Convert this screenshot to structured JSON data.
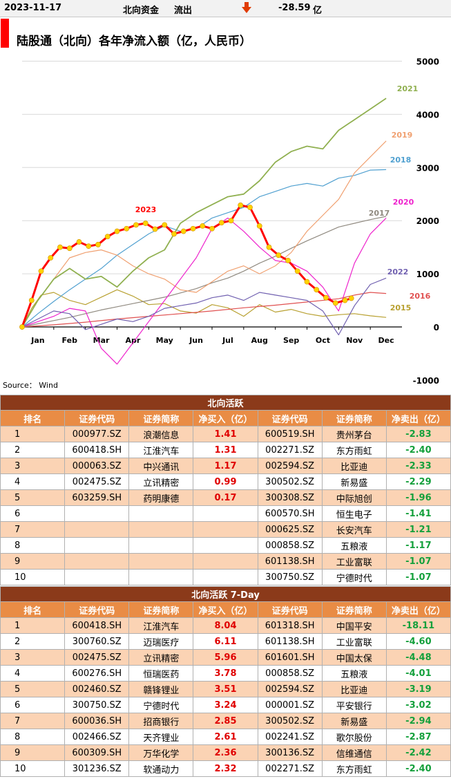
{
  "header": {
    "date": "2023-11-17",
    "label": "北向资金",
    "direction": "流出",
    "arrow_icon": "down-arrow",
    "arrow_color": "#e03b00",
    "value": "-28.59",
    "unit": "亿"
  },
  "chart_data": {
    "type": "line",
    "title": "陆股通（北向）各年净流入额（亿，人民币）",
    "source": "Source： Wind",
    "title_marker_color": "#ff0000",
    "months": [
      "Jan",
      "Feb",
      "Mar",
      "Apr",
      "May",
      "Jun",
      "Jul",
      "Aug",
      "Sep",
      "Oct",
      "Nov",
      "Dec"
    ],
    "yticks": [
      "5000",
      "4000",
      "3000",
      "2000",
      "1000",
      "0",
      "-1000"
    ],
    "ylim": [
      -1000,
      5000
    ],
    "grid": true,
    "series": [
      {
        "name": "2015",
        "color": "#b8a030",
        "width": 1.2,
        "labeled": true,
        "x": [
          0,
          0.3,
          0.6,
          1,
          1.5,
          2,
          2.5,
          3,
          3.5,
          4,
          4.5,
          5,
          5.5,
          6,
          6.5,
          7,
          7.5,
          8,
          8.5,
          9,
          9.5,
          10,
          10.5,
          11,
          11.5
        ],
        "y": [
          0,
          350,
          600,
          650,
          500,
          420,
          560,
          700,
          580,
          420,
          440,
          300,
          260,
          420,
          360,
          200,
          420,
          280,
          330,
          250,
          200,
          230,
          250,
          210,
          180
        ]
      },
      {
        "name": "2016",
        "color": "#e05050",
        "width": 1.2,
        "labeled": true,
        "x": [
          0,
          1,
          2,
          3,
          4,
          5,
          6,
          7,
          8,
          9,
          10,
          10.5,
          11,
          11.5
        ],
        "y": [
          0,
          40,
          90,
          150,
          200,
          250,
          300,
          360,
          410,
          470,
          530,
          600,
          650,
          630
        ]
      },
      {
        "name": "2017",
        "color": "#908a80",
        "width": 1.2,
        "labeled": true,
        "x": [
          0,
          0.5,
          1,
          1.5,
          2,
          2.5,
          3,
          3.5,
          4,
          4.5,
          5,
          5.5,
          6,
          6.5,
          7,
          7.5,
          8,
          8.5,
          9,
          9.5,
          10,
          10.5,
          11,
          11.5
        ],
        "y": [
          0,
          60,
          120,
          180,
          250,
          320,
          380,
          440,
          500,
          560,
          640,
          720,
          830,
          920,
          1050,
          1200,
          1330,
          1480,
          1620,
          1750,
          1880,
          1950,
          2020,
          2080
        ]
      },
      {
        "name": "2018",
        "color": "#50a0d0",
        "width": 1.2,
        "labeled": true,
        "x": [
          0,
          0.5,
          1,
          1.5,
          2,
          2.5,
          3,
          3.5,
          4,
          4.5,
          5,
          5.5,
          6,
          6.5,
          7,
          7.5,
          8,
          8.5,
          9,
          9.5,
          10,
          10.5,
          11,
          11.5
        ],
        "y": [
          0,
          250,
          480,
          700,
          900,
          1100,
          1350,
          1550,
          1750,
          1900,
          1800,
          1850,
          2050,
          2150,
          2250,
          2450,
          2550,
          2650,
          2700,
          2650,
          2800,
          2850,
          2950,
          2960
        ]
      },
      {
        "name": "2019",
        "color": "#f0a070",
        "width": 1.2,
        "labeled": true,
        "x": [
          0,
          0.5,
          1,
          1.5,
          2,
          2.5,
          3,
          3.5,
          4,
          4.5,
          5,
          5.5,
          6,
          6.5,
          7,
          7.5,
          8,
          8.5,
          9,
          9.5,
          10,
          10.5,
          11,
          11.5
        ],
        "y": [
          0,
          500,
          900,
          1300,
          1400,
          1450,
          1350,
          1150,
          1000,
          900,
          700,
          650,
          850,
          1050,
          1150,
          1000,
          1150,
          1400,
          1800,
          2100,
          2400,
          2900,
          3200,
          3500
        ]
      },
      {
        "name": "2020",
        "color": "#ee22cc",
        "width": 1.2,
        "labeled": true,
        "x": [
          0,
          0.5,
          1,
          1.5,
          2,
          2.5,
          3,
          3.5,
          4,
          4.5,
          5,
          5.5,
          6,
          6.5,
          7,
          7.5,
          8,
          8.5,
          9,
          9.5,
          10,
          10.5,
          11,
          11.5
        ],
        "y": [
          0,
          100,
          200,
          350,
          300,
          -400,
          -700,
          -300,
          100,
          500,
          900,
          1300,
          1850,
          2050,
          1800,
          1500,
          1250,
          1200,
          1050,
          750,
          300,
          1200,
          1750,
          2050
        ]
      },
      {
        "name": "2021",
        "color": "#90b050",
        "width": 1.8,
        "labeled": true,
        "x": [
          0,
          0.5,
          1,
          1.5,
          2,
          2.5,
          3,
          3.5,
          4,
          4.5,
          5,
          5.5,
          6,
          6.5,
          7,
          7.5,
          8,
          8.5,
          9,
          9.5,
          10,
          10.5,
          11,
          11.5
        ],
        "y": [
          0,
          500,
          900,
          1100,
          900,
          950,
          750,
          1050,
          1300,
          1450,
          1950,
          2150,
          2300,
          2450,
          2500,
          2750,
          3100,
          3300,
          3400,
          3350,
          3700,
          3900,
          4100,
          4300
        ]
      },
      {
        "name": "2022",
        "color": "#7060b0",
        "width": 1.2,
        "labeled": true,
        "x": [
          0,
          0.5,
          1,
          1.5,
          2,
          2.5,
          3,
          3.5,
          4,
          4.5,
          5,
          5.5,
          6,
          6.5,
          7,
          7.5,
          8,
          8.5,
          9,
          9.5,
          10,
          10.5,
          11,
          11.5
        ],
        "y": [
          0,
          150,
          300,
          250,
          -50,
          50,
          150,
          100,
          200,
          350,
          400,
          450,
          550,
          600,
          500,
          650,
          600,
          550,
          500,
          300,
          -150,
          400,
          800,
          920
        ]
      },
      {
        "name": "2023",
        "color": "#ff0000",
        "marker_color": "#ffd200",
        "width": 3,
        "labeled": true,
        "x": [
          0,
          0.3,
          0.6,
          0.9,
          1.2,
          1.5,
          1.8,
          2.1,
          2.4,
          2.7,
          3.0,
          3.3,
          3.6,
          3.9,
          4.2,
          4.5,
          4.8,
          5.1,
          5.4,
          5.7,
          6.0,
          6.3,
          6.6,
          6.9,
          7.2,
          7.5,
          7.8,
          8.1,
          8.4,
          8.7,
          9.0,
          9.3,
          9.6,
          9.9,
          10.2,
          10.4
        ],
        "y": [
          0,
          500,
          1050,
          1300,
          1500,
          1480,
          1600,
          1520,
          1550,
          1700,
          1800,
          1850,
          1920,
          1950,
          1840,
          1920,
          1750,
          1800,
          1850,
          1900,
          1850,
          1960,
          2000,
          2290,
          2250,
          1900,
          1500,
          1350,
          1250,
          1050,
          850,
          700,
          550,
          450,
          500,
          540
        ]
      }
    ]
  },
  "table1": {
    "title": "北向活跃",
    "headers": [
      "排名",
      "证券代码",
      "证券简称",
      "净买入（亿）",
      "证券代码",
      "证券简称",
      "净卖出（亿）"
    ],
    "rows": [
      [
        "1",
        "000977.SZ",
        "浪潮信息",
        "1.41",
        "600519.SH",
        "贵州茅台",
        "-2.83"
      ],
      [
        "2",
        "600418.SH",
        "江淮汽车",
        "1.31",
        "002271.SZ",
        "东方雨虹",
        "-2.40"
      ],
      [
        "3",
        "000063.SZ",
        "中兴通讯",
        "1.17",
        "002594.SZ",
        "比亚迪",
        "-2.33"
      ],
      [
        "4",
        "002475.SZ",
        "立讯精密",
        "0.99",
        "300502.SZ",
        "新易盛",
        "-2.29"
      ],
      [
        "5",
        "603259.SH",
        "药明康德",
        "0.17",
        "300308.SZ",
        "中际旭创",
        "-1.96"
      ],
      [
        "6",
        "",
        "",
        "",
        "600570.SH",
        "恒生电子",
        "-1.41"
      ],
      [
        "7",
        "",
        "",
        "",
        "000625.SZ",
        "长安汽车",
        "-1.21"
      ],
      [
        "8",
        "",
        "",
        "",
        "000858.SZ",
        "五粮液",
        "-1.17"
      ],
      [
        "9",
        "",
        "",
        "",
        "601138.SH",
        "工业富联",
        "-1.07"
      ],
      [
        "10",
        "",
        "",
        "",
        "300750.SZ",
        "宁德时代",
        "-1.07"
      ]
    ]
  },
  "table2": {
    "title": "北向活跃 7-Day",
    "headers": [
      "排名",
      "证券代码",
      "证券简称",
      "净买入（亿）",
      "证券代码",
      "证券简称",
      "净卖出（亿）"
    ],
    "rows": [
      [
        "1",
        "600418.SH",
        "江淮汽车",
        "8.04",
        "601318.SH",
        "中国平安",
        "-18.11"
      ],
      [
        "2",
        "300760.SZ",
        "迈瑞医疗",
        "6.11",
        "601138.SH",
        "工业富联",
        "-4.60"
      ],
      [
        "3",
        "002475.SZ",
        "立讯精密",
        "5.96",
        "601601.SH",
        "中国太保",
        "-4.48"
      ],
      [
        "4",
        "600276.SH",
        "恒瑞医药",
        "3.78",
        "000858.SZ",
        "五粮液",
        "-4.01"
      ],
      [
        "5",
        "002460.SZ",
        "赣锋锂业",
        "3.51",
        "002594.SZ",
        "比亚迪",
        "-3.19"
      ],
      [
        "6",
        "300750.SZ",
        "宁德时代",
        "3.24",
        "000001.SZ",
        "平安银行",
        "-3.02"
      ],
      [
        "7",
        "600036.SH",
        "招商银行",
        "2.85",
        "300502.SZ",
        "新易盛",
        "-2.94"
      ],
      [
        "8",
        "002466.SZ",
        "天齐锂业",
        "2.61",
        "002241.SZ",
        "歌尔股份",
        "-2.87"
      ],
      [
        "9",
        "600309.SH",
        "万华化学",
        "2.36",
        "300136.SZ",
        "信维通信",
        "-2.42"
      ],
      [
        "10",
        "301236.SZ",
        "软通动力",
        "2.32",
        "002271.SZ",
        "东方雨虹",
        "-2.40"
      ]
    ]
  },
  "colors": {
    "title_bar": "#8b3a1a",
    "header_bar": "#e98c45",
    "odd_row": "#fbd3b4",
    "buy": "#e00000",
    "sell": "#14a03c"
  }
}
